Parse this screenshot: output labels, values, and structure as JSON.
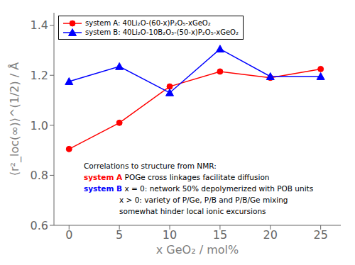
{
  "chart_data": {
    "type": "line",
    "x": [
      0,
      5,
      10,
      15,
      20,
      25
    ],
    "series": [
      {
        "name": "system A: 40Li₂O-(60-x)P₂O₅-xGeO₂",
        "color": "red",
        "marker": "circle",
        "line_style": "solid",
        "values": [
          0.905,
          1.01,
          1.155,
          1.215,
          1.19,
          1.225
        ]
      },
      {
        "name": "system B: 40Li₂O-10B₂O₃-(50-x)P₂O₅-xGeO₂",
        "color": "blue",
        "marker": "triangle",
        "line_style": "solid",
        "values": [
          1.175,
          1.235,
          1.13,
          1.305,
          1.195,
          1.195
        ]
      }
    ],
    "xlabel": "x GeO₂ / mol%",
    "ylabel": "⟨r²_loc(∞)⟩^(1/2) / Å",
    "xlim": [
      -1.5,
      27
    ],
    "ylim": [
      0.6,
      1.45
    ],
    "xticks": [
      0,
      5,
      10,
      15,
      20,
      25
    ],
    "yticks": [
      0.6,
      0.8,
      {
        "value": 1.0,
        "label": "1.0"
      },
      1.2,
      1.4
    ],
    "grid": false,
    "legend": "upper left",
    "annotations": [
      [
        {
          "text": "Correlations to structure from NMR:"
        }
      ],
      [
        {
          "text": "system A",
          "color": "red"
        },
        {
          "text": " POGe cross linkages facilitate diffusion"
        }
      ],
      [
        {
          "text": "system B",
          "color": "blue"
        },
        {
          "text": " x = 0: network 50% depolymerized with POB units"
        }
      ],
      [
        {
          "text": "x > 0: variety of P/Ge, P/B and P/B/Ge mixing"
        }
      ],
      [
        {
          "text": "somewhat hinder local ionic excursions"
        }
      ]
    ]
  }
}
